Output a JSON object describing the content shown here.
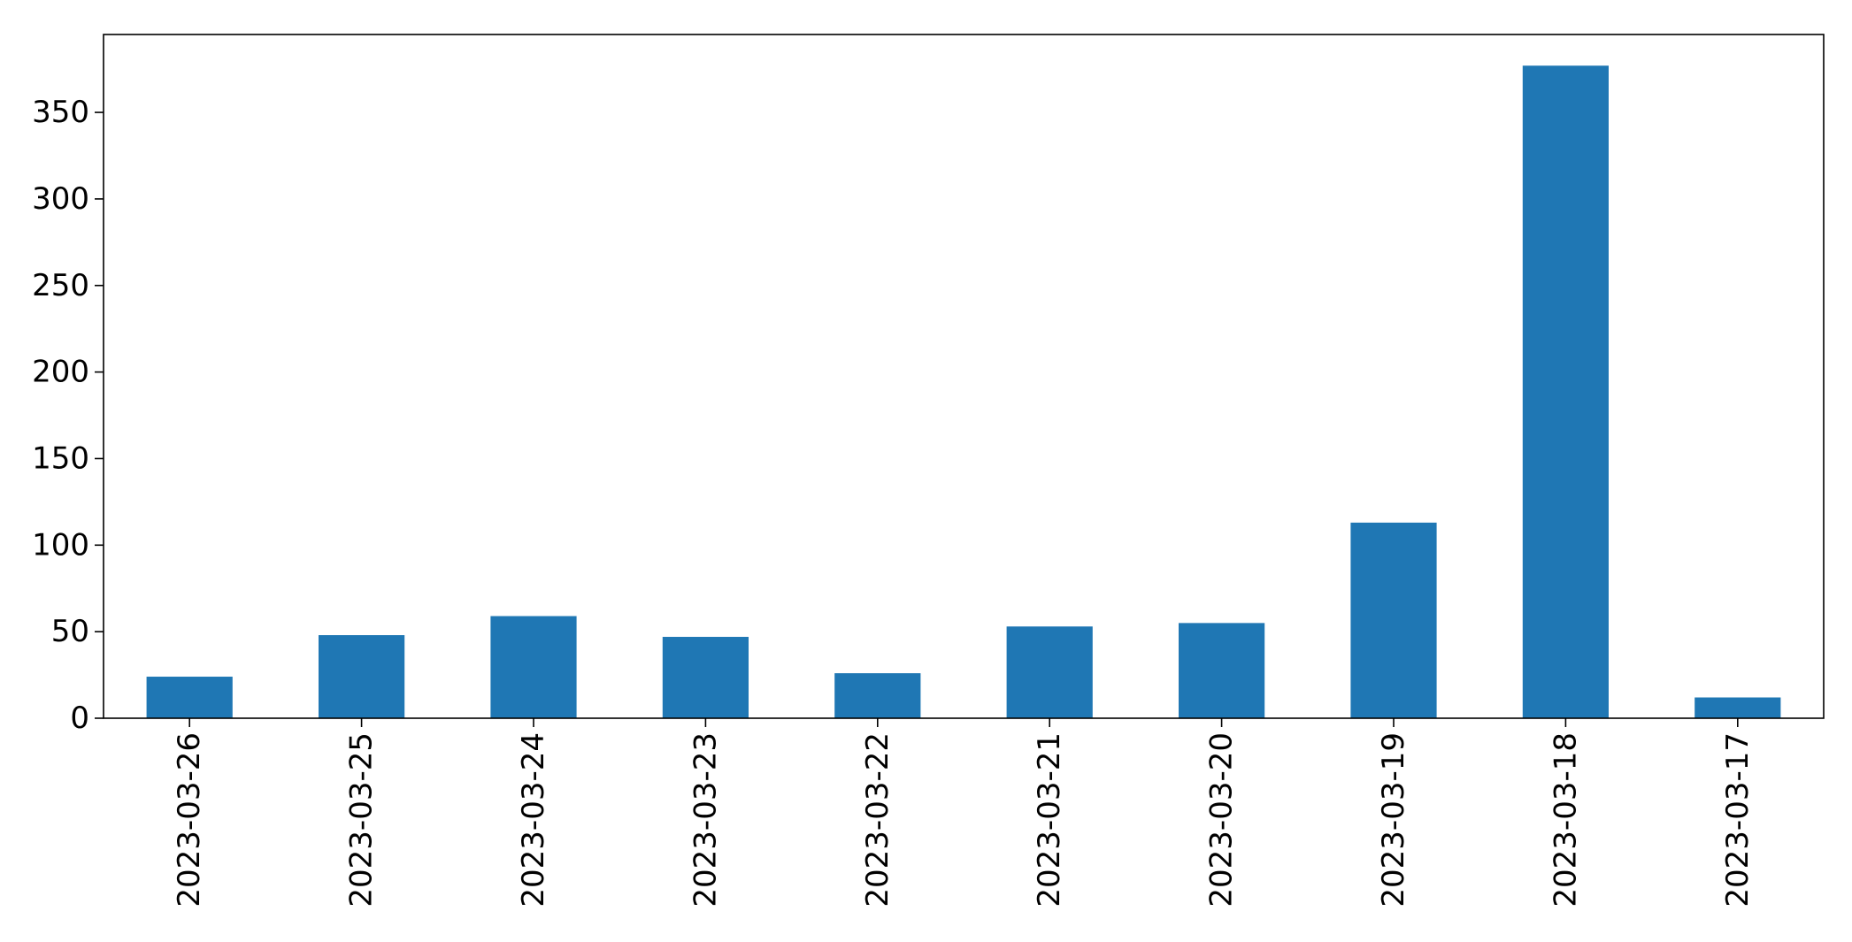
{
  "chart_data": {
    "type": "bar",
    "title": "",
    "xlabel": "",
    "ylabel": "",
    "categories": [
      "2023-03-26",
      "2023-03-25",
      "2023-03-24",
      "2023-03-23",
      "2023-03-22",
      "2023-03-21",
      "2023-03-20",
      "2023-03-19",
      "2023-03-18",
      "2023-03-17"
    ],
    "series": [
      {
        "values": [
          24,
          48,
          59,
          47,
          26,
          53,
          55,
          113,
          377,
          12
        ]
      }
    ],
    "ylim": [
      0,
      395
    ],
    "yticks": [
      0,
      50,
      100,
      150,
      200,
      250,
      300,
      350
    ],
    "grid": false,
    "legend": "none",
    "colors": {
      "bar": "#1f77b4",
      "axis": "#000000",
      "background": "#ffffff"
    }
  }
}
